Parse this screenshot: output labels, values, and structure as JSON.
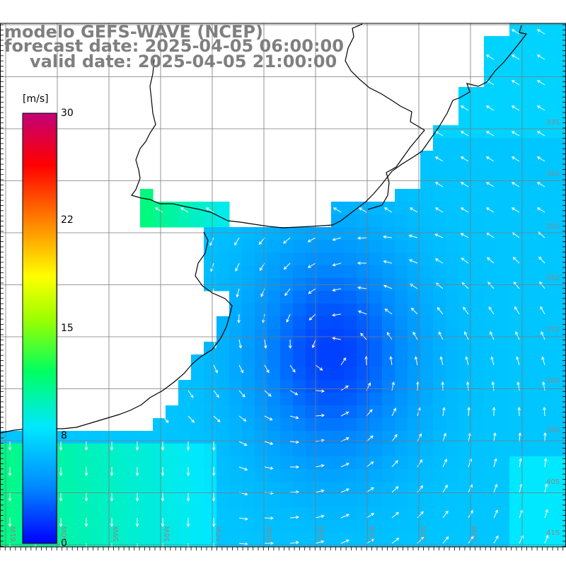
{
  "title": {
    "line1": "modelo GEFS-WAVE (NCEP)",
    "line2": "forecast date: 2025-04-05 06:00:00",
    "line3": "valid date: 2025-04-05 21:00:00"
  },
  "colorbar": {
    "unit": "[m/s]",
    "ticks": [
      "30",
      "22",
      "15",
      "8",
      "0"
    ],
    "tick_values": [
      30,
      22,
      15,
      8,
      0
    ],
    "min": 0,
    "max": 30,
    "colors": [
      "#0000ff",
      "#0088ff",
      "#00e8ff",
      "#00ff60",
      "#9bff00",
      "#ffff00",
      "#ff7700",
      "#ff0000",
      "#c30078"
    ]
  },
  "lat_labels": [
    "33S",
    "34S",
    "35S",
    "36S",
    "37S",
    "38S",
    "39S",
    "40S",
    "41S"
  ],
  "lon_labels": [
    "61W",
    "60W",
    "59W",
    "58W",
    "57W",
    "56W",
    "55W",
    "54W",
    "53W",
    "52W"
  ]
}
